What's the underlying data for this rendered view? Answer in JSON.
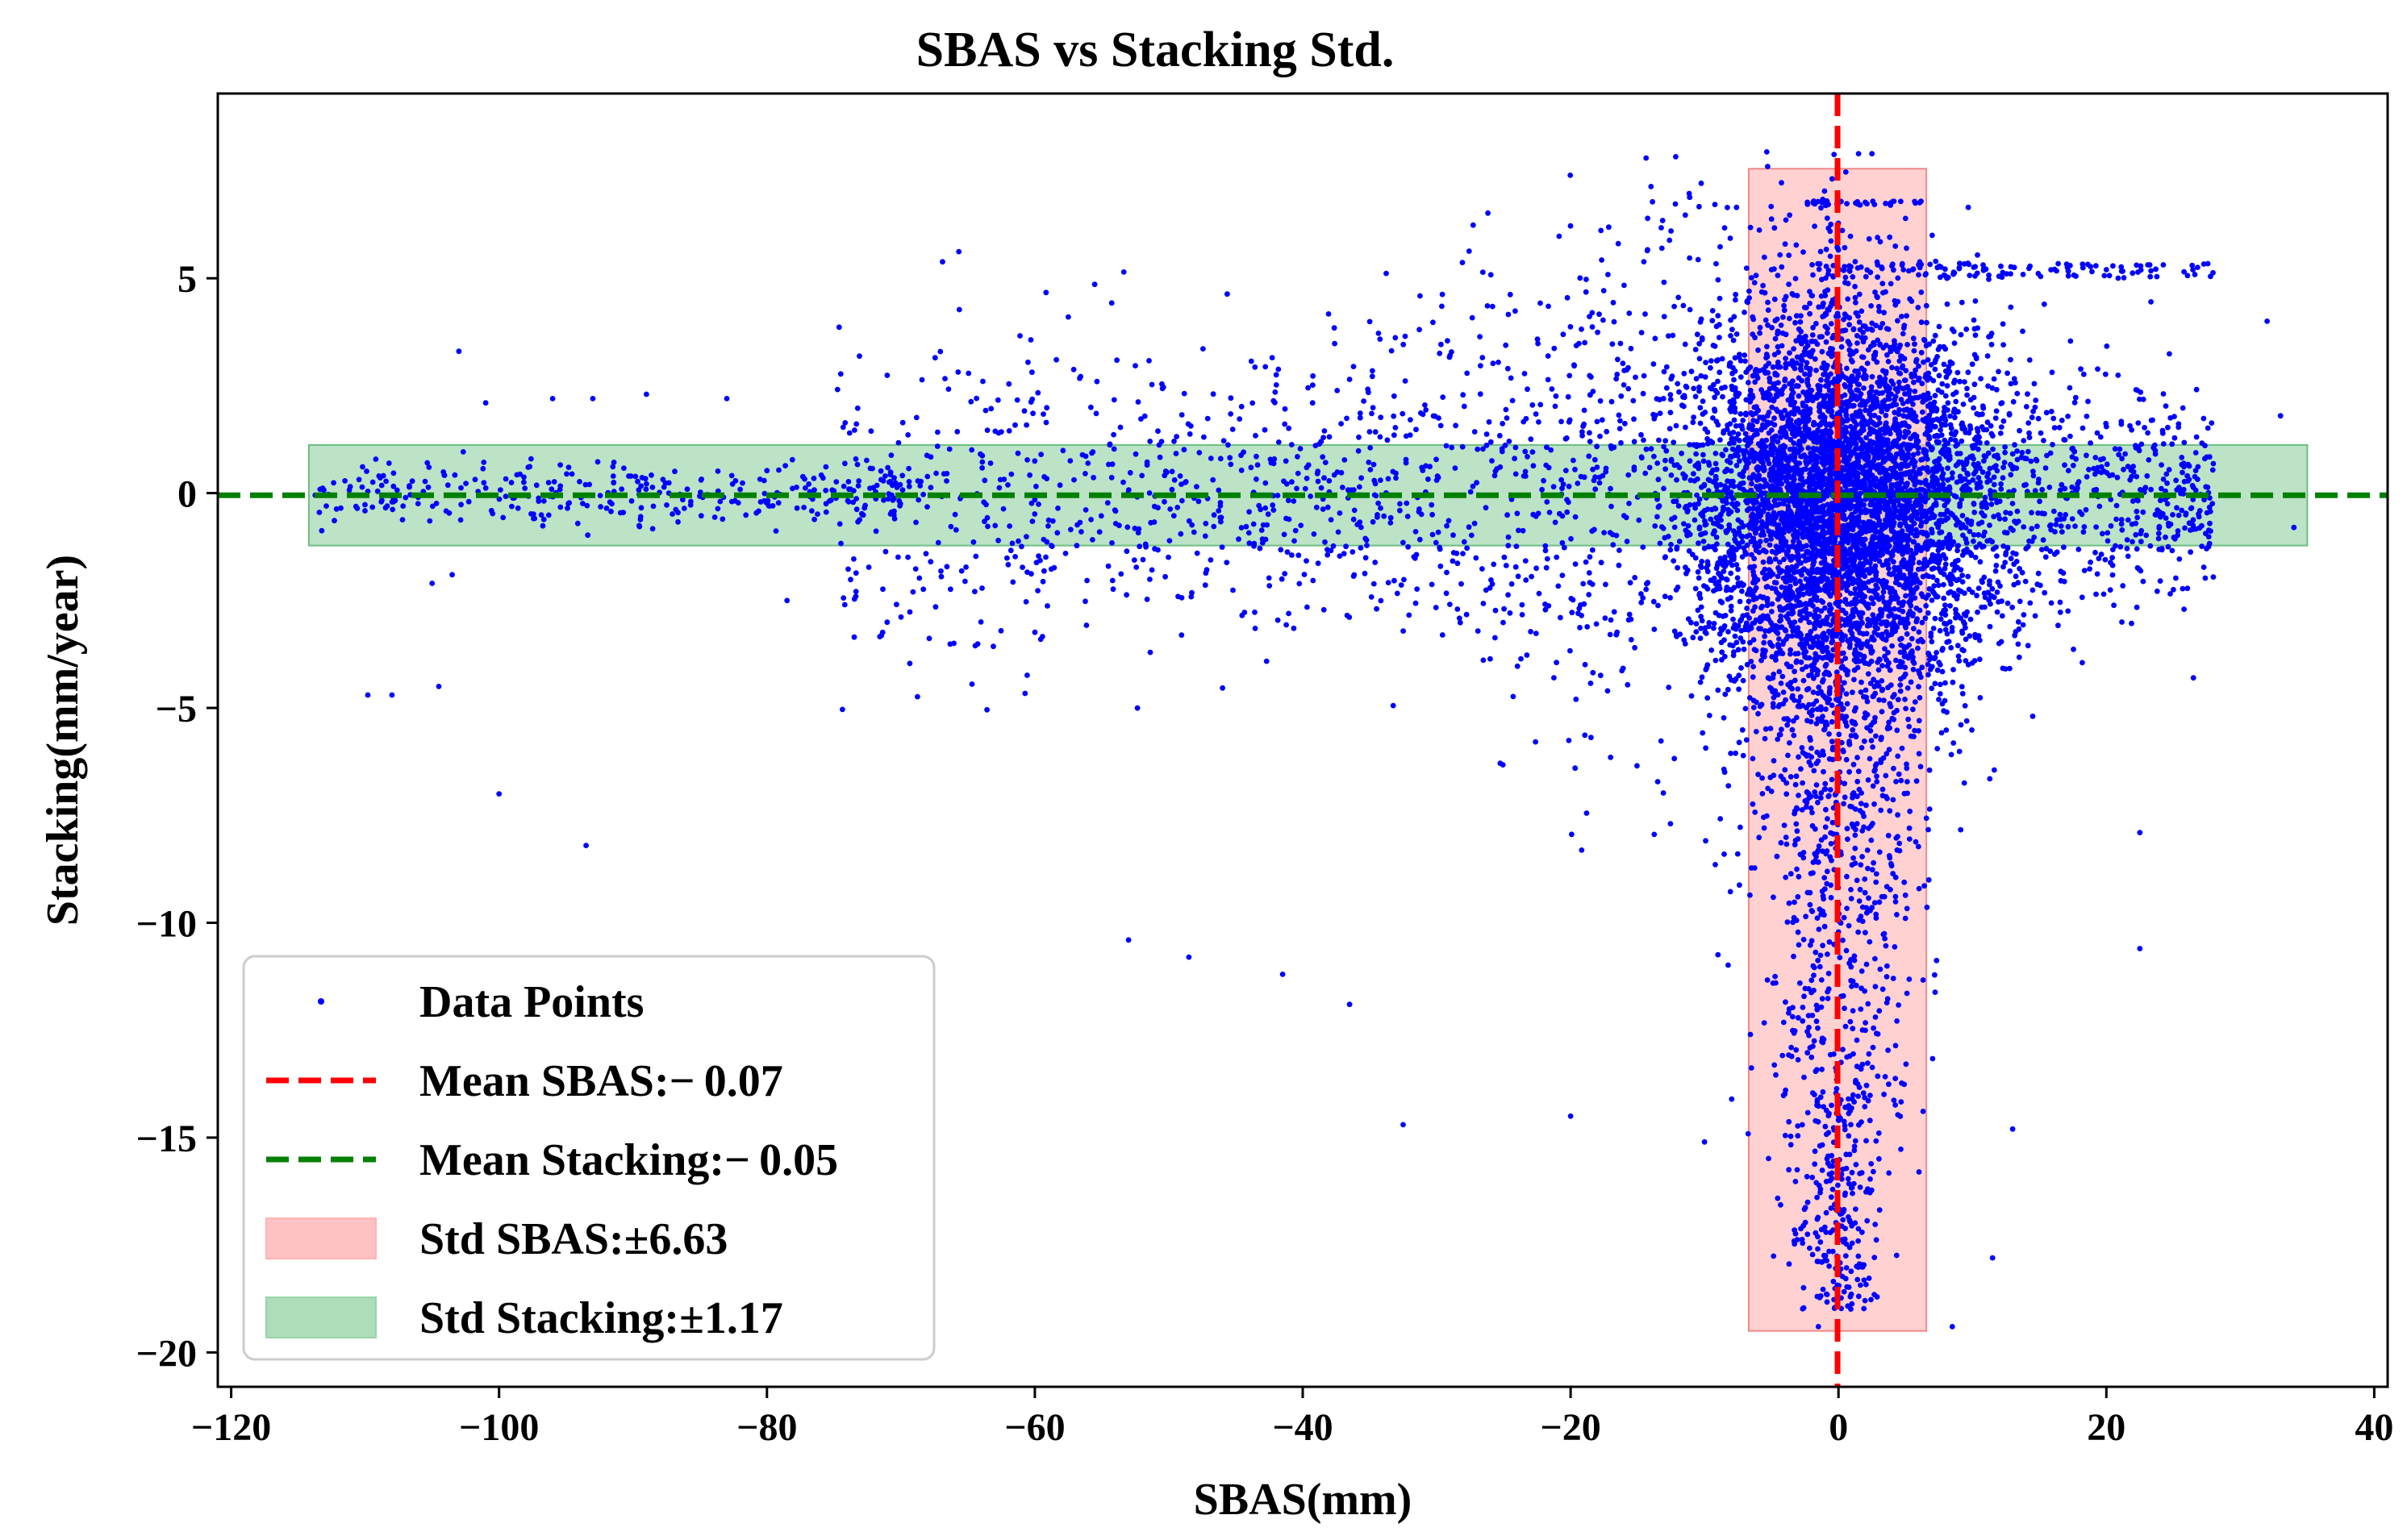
{
  "chart_data": {
    "type": "scatter",
    "title": "SBAS vs Stacking Std.",
    "xlabel": "SBAS(mm)",
    "ylabel": "Stacking(mm/year)",
    "xlim": [
      -121,
      41
    ],
    "ylim": [
      -20.8,
      9.3
    ],
    "xticks": [
      -120,
      -100,
      -80,
      -60,
      -40,
      -20,
      0,
      20,
      40
    ],
    "yticks": [
      -20,
      -15,
      -10,
      -5,
      0,
      5
    ],
    "grid": false,
    "legend_position": "bottom-left",
    "colors": {
      "points": "#0000ff",
      "mean_sbas": "#ff0000",
      "mean_stacking": "#008000",
      "std_sbas_fill": "#ffb3b3",
      "std_stacking_fill": "#98d4a8"
    },
    "series": [
      {
        "name": "Data Points",
        "kind": "scatter",
        "note": "dense cloud (hundreds of thousands of points) centred near (0,0); listed points are representative outliers",
        "points": [
          [
            -109.8,
            -4.7
          ],
          [
            -108.0,
            -4.7
          ],
          [
            -104.5,
            -4.5
          ],
          [
            -105.0,
            -2.1
          ],
          [
            -103.5,
            -1.9
          ],
          [
            -100.0,
            -7.0
          ],
          [
            -93.5,
            -8.2
          ],
          [
            -103.0,
            3.3
          ],
          [
            -101.0,
            2.1
          ],
          [
            -96.0,
            2.2
          ],
          [
            -93.0,
            2.2
          ],
          [
            -89.0,
            2.3
          ],
          [
            -83.0,
            2.2
          ],
          [
            -78.5,
            -2.5
          ],
          [
            -57.5,
            4.1
          ],
          [
            -53.0,
            -10.4
          ],
          [
            -48.5,
            -10.8
          ],
          [
            -41.5,
            -11.2
          ],
          [
            -36.5,
            -11.9
          ],
          [
            -32.5,
            -14.7
          ],
          [
            -20.0,
            -14.5
          ],
          [
            -10.0,
            -15.1
          ],
          [
            -12.5,
            6.1
          ],
          [
            1.5,
            7.9
          ],
          [
            2.5,
            7.9
          ],
          [
            7.0,
            6.0
          ],
          [
            11.5,
            -17.8
          ],
          [
            8.5,
            -19.4
          ],
          [
            -1.5,
            -19.4
          ],
          [
            13.0,
            -14.8
          ],
          [
            22.5,
            -10.6
          ],
          [
            22.5,
            -7.9
          ],
          [
            26.5,
            -4.3
          ],
          [
            32.0,
            4.0
          ],
          [
            33.0,
            1.8
          ],
          [
            34.0,
            -0.8
          ],
          [
            -5.0,
            5.2
          ],
          [
            -9.0,
            3.1
          ],
          [
            10.0,
            3.0
          ],
          [
            20.0,
            5.2
          ]
        ]
      },
      {
        "name": "Mean SBAS: −0.07",
        "kind": "vline",
        "value": -0.07
      },
      {
        "name": "Mean Stacking: −0.05",
        "kind": "hline",
        "value": -0.05
      },
      {
        "name": "Std SBAS: ±6.63",
        "kind": "xspan",
        "x_range": [
          -6.7,
          6.56
        ],
        "y_range": [
          -19.5,
          7.55
        ]
      },
      {
        "name": "Std Stacking: ±1.17",
        "kind": "yspan",
        "y_range": [
          -1.22,
          1.12
        ],
        "x_range": [
          -114.2,
          35.0
        ]
      }
    ],
    "legend": [
      {
        "label": "Data Points",
        "kind": "marker",
        "color": "#0000ff"
      },
      {
        "label": "Mean SBAS:− 0.07",
        "kind": "dashed",
        "color": "#ff0000"
      },
      {
        "label": "Mean Stacking:− 0.05",
        "kind": "dashed",
        "color": "#008000"
      },
      {
        "label": "Std SBAS:±6.63",
        "kind": "patch",
        "color": "#ffb3b3"
      },
      {
        "label": "Std Stacking:±1.17",
        "kind": "patch",
        "color": "#98d4a8"
      }
    ]
  }
}
